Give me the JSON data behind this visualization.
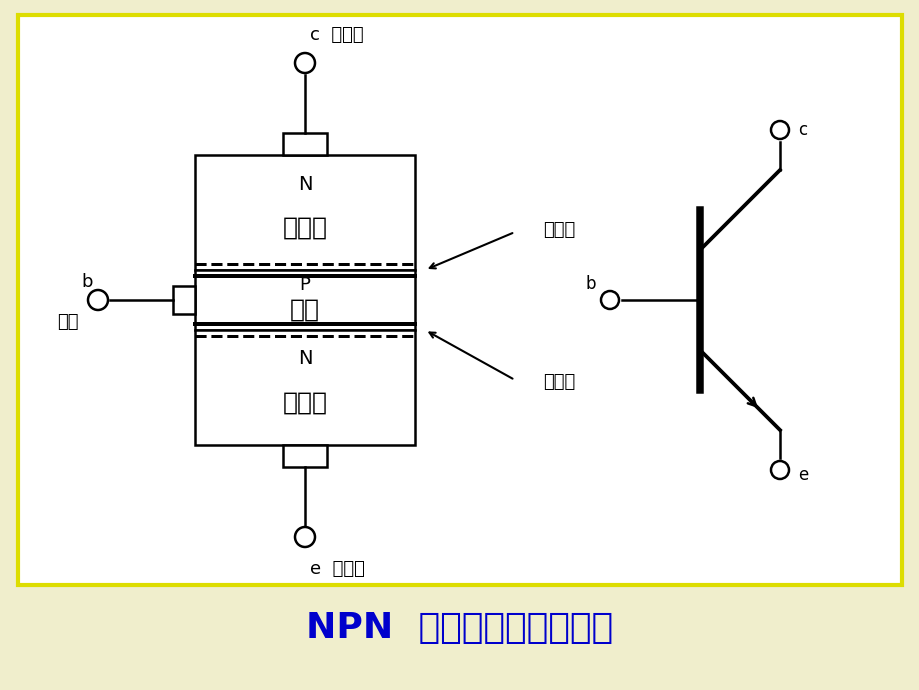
{
  "bg_outer": "#f0eecc",
  "bg_inner": "#ffffff",
  "border_color": "#dddd00",
  "line_color": "#000000",
  "title_color": "#0000cc",
  "title_text": "NPN  型三极管结构及符号",
  "title_fontsize": 26,
  "label_collector_region": "集电区",
  "label_base_region": "基区",
  "label_emitter_region": "发射区",
  "label_N_top": "N",
  "label_P": "P",
  "label_N_bot": "N",
  "label_c_terminal": "c  集电极",
  "label_e_terminal": "e  发射极",
  "label_b": "b",
  "label_jiji": "基极",
  "label_jidianji": "集电结",
  "label_fasheji": "发射结",
  "sym_c": "c",
  "sym_b": "b",
  "sym_e": "e"
}
